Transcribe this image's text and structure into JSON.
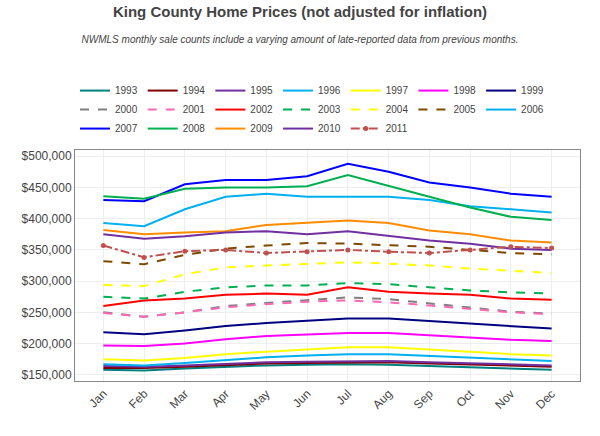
{
  "chart_data": {
    "type": "line",
    "title": "King County Home Prices (not adjusted for inflation)",
    "subtitle": "NWMLS monthly sale counts include a varying amount of late-reported data from previous months.",
    "categories": [
      "Jan",
      "Feb",
      "Mar",
      "Apr",
      "May",
      "Jun",
      "Jul",
      "Aug",
      "Sep",
      "Oct",
      "Nov",
      "Dec"
    ],
    "series": [
      {
        "name": "1993",
        "color": "#008080",
        "line_style": "solid",
        "values": [
          158000,
          157000,
          160000,
          163000,
          165000,
          166000,
          167000,
          166000,
          164000,
          161000,
          159000,
          158000
        ]
      },
      {
        "name": "1994",
        "color": "#800000",
        "line_style": "solid",
        "values": [
          161000,
          161000,
          163000,
          166000,
          168000,
          169000,
          170000,
          170000,
          168000,
          166000,
          164000,
          163000
        ]
      },
      {
        "name": "1995",
        "color": "#7030A0",
        "line_style": "solid",
        "values": [
          164000,
          163000,
          165000,
          168000,
          170000,
          171000,
          172000,
          172000,
          170000,
          168000,
          166000,
          165000
        ]
      },
      {
        "name": "1996",
        "color": "#00B0F0",
        "line_style": "solid",
        "values": [
          167000,
          165000,
          169000,
          174000,
          178000,
          181000,
          183000,
          183000,
          180000,
          177000,
          174000,
          172000
        ]
      },
      {
        "name": "1997",
        "color": "#FFFF00",
        "line_style": "solid",
        "values": [
          175000,
          173000,
          177000,
          183000,
          187000,
          191000,
          194000,
          194000,
          190000,
          186000,
          183000,
          181000
        ]
      },
      {
        "name": "1998",
        "color": "#FF00FF",
        "line_style": "solid",
        "values": [
          197000,
          196000,
          200000,
          207000,
          212000,
          215000,
          217000,
          217000,
          213000,
          210000,
          206000,
          204000
        ]
      },
      {
        "name": "1999",
        "color": "#000080",
        "line_style": "solid",
        "values": [
          218000,
          215000,
          221000,
          228000,
          233000,
          237000,
          240000,
          240000,
          236000,
          231000,
          227000,
          224000
        ]
      },
      {
        "name": "2000",
        "color": "#808080",
        "line_style": "dashed",
        "values": [
          250000,
          243000,
          250000,
          260000,
          265000,
          270000,
          274000,
          271000,
          264000,
          257000,
          251000,
          248000
        ]
      },
      {
        "name": "2001",
        "color": "#FF69B4",
        "line_style": "dashed",
        "values": [
          249000,
          243000,
          250000,
          258000,
          263000,
          267000,
          269000,
          266000,
          261000,
          255000,
          250000,
          247000
        ]
      },
      {
        "name": "2002",
        "color": "#FF0000",
        "line_style": "solid",
        "values": [
          260000,
          269000,
          272000,
          278000,
          280000,
          278000,
          290000,
          283000,
          280000,
          278000,
          272000,
          270000
        ]
      },
      {
        "name": "2003",
        "color": "#00B050",
        "line_style": "dashed",
        "values": [
          275000,
          272000,
          283000,
          290000,
          293000,
          293000,
          297000,
          295000,
          290000,
          285000,
          282000,
          280000
        ]
      },
      {
        "name": "2004",
        "color": "#FFFF00",
        "line_style": "dashed",
        "values": [
          294000,
          292000,
          311000,
          322000,
          325000,
          328000,
          330000,
          328000,
          325000,
          320000,
          316000,
          313000
        ]
      },
      {
        "name": "2005",
        "color": "#7F4A00",
        "line_style": "dashed",
        "values": [
          332000,
          327000,
          342000,
          352000,
          357000,
          361000,
          360000,
          358000,
          355000,
          350000,
          345000,
          343000
        ]
      },
      {
        "name": "2006",
        "color": "#00B0F0",
        "line_style": "solid",
        "values": [
          393000,
          388000,
          415000,
          435000,
          440000,
          435000,
          435000,
          435000,
          430000,
          420000,
          415000,
          410000
        ]
      },
      {
        "name": "2007",
        "color": "#0000FF",
        "line_style": "solid",
        "values": [
          430000,
          428000,
          455000,
          462000,
          462000,
          468000,
          488000,
          475000,
          458000,
          450000,
          440000,
          435000
        ]
      },
      {
        "name": "2008",
        "color": "#00B050",
        "line_style": "solid",
        "values": [
          436000,
          432000,
          448000,
          450000,
          450000,
          452000,
          470000,
          452000,
          435000,
          418000,
          403000,
          398000
        ]
      },
      {
        "name": "2009",
        "color": "#FF8C00",
        "line_style": "solid",
        "values": [
          382000,
          375000,
          378000,
          380000,
          390000,
          393000,
          397000,
          393000,
          381000,
          375000,
          365000,
          362000
        ]
      },
      {
        "name": "2010",
        "color": "#7030A0",
        "line_style": "solid",
        "values": [
          375000,
          368000,
          372000,
          378000,
          380000,
          375000,
          380000,
          373000,
          365000,
          360000,
          352000,
          350000
        ]
      },
      {
        "name": "2011",
        "color": "#C0504D",
        "line_style": "dashdot",
        "marker": "circle",
        "values": [
          357000,
          338000,
          348000,
          350000,
          345000,
          347000,
          350000,
          347000,
          345000,
          350000,
          355000,
          353000
        ]
      }
    ],
    "ylim": [
      140000,
      510000
    ],
    "yticks": [
      {
        "value": 150000,
        "label": "$150,000"
      },
      {
        "value": 200000,
        "label": "$200,000"
      },
      {
        "value": 250000,
        "label": "$250,000"
      },
      {
        "value": 300000,
        "label": "$300,000"
      },
      {
        "value": 350000,
        "label": "$350,000"
      },
      {
        "value": 400000,
        "label": "$400,000"
      },
      {
        "value": 450000,
        "label": "$450,000"
      },
      {
        "value": 500000,
        "label": "$500,000"
      }
    ],
    "grid": true,
    "legend": "top"
  }
}
